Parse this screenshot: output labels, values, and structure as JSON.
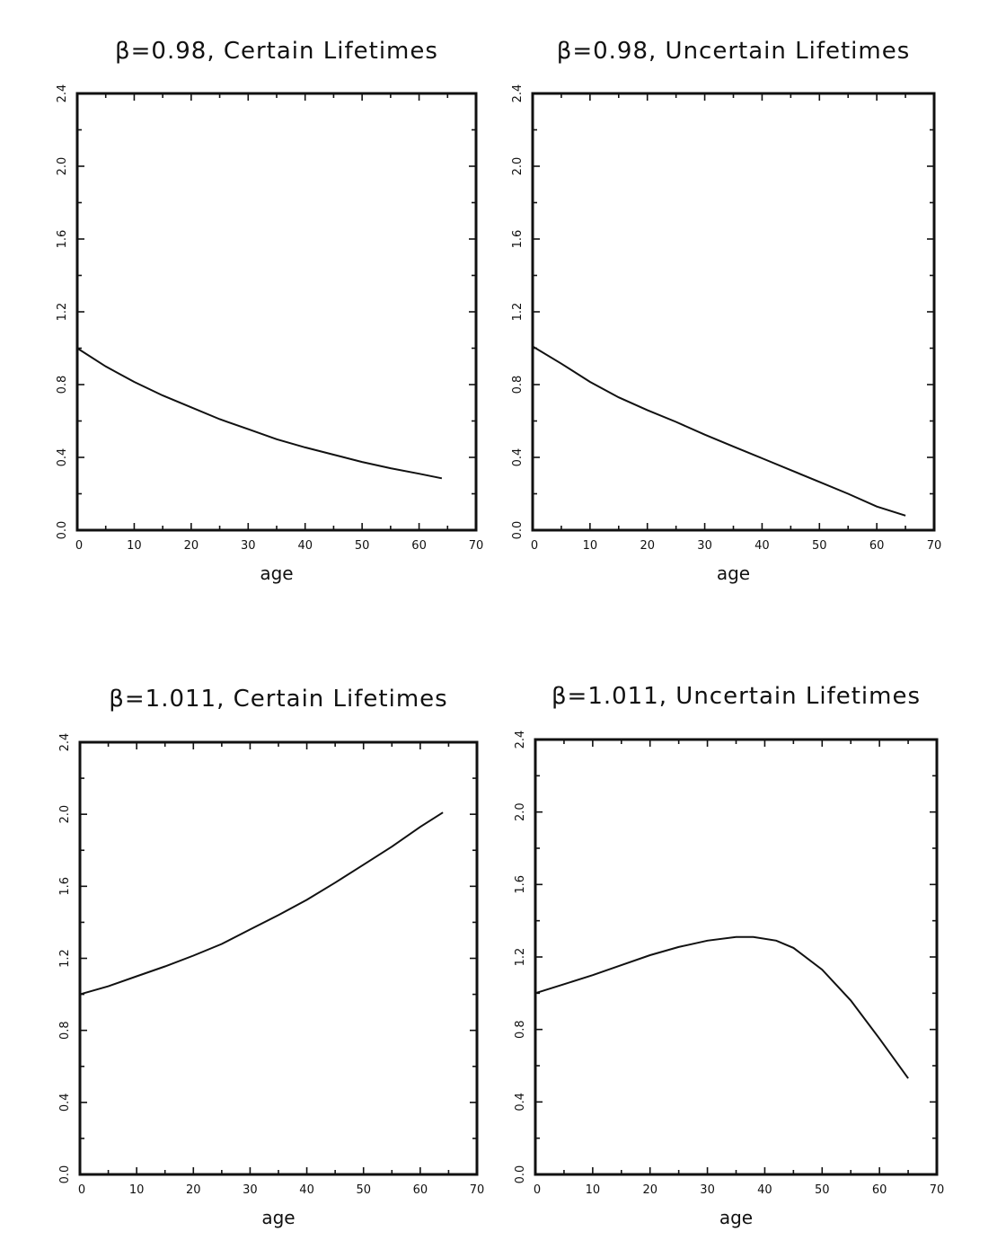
{
  "chart_data": [
    {
      "type": "line",
      "title": "β=0.98, Certain Lifetimes",
      "xlabel": "age",
      "ylabel": "",
      "xlim": [
        0,
        70
      ],
      "ylim": [
        0,
        2.4
      ],
      "x_ticks": [
        "0",
        "10",
        "20",
        "30",
        "40",
        "50",
        "60",
        "70"
      ],
      "y_ticks": [
        "0.0",
        "0.4",
        "0.8",
        "1.2",
        "1.6",
        "2.0",
        "2.4"
      ],
      "series": [
        {
          "x": [
            0,
            5,
            10,
            15,
            20,
            25,
            30,
            35,
            40,
            45,
            50,
            55,
            60,
            64
          ],
          "y": [
            1.0,
            0.9,
            0.815,
            0.74,
            0.675,
            0.61,
            0.555,
            0.5,
            0.455,
            0.415,
            0.375,
            0.34,
            0.31,
            0.285
          ]
        }
      ]
    },
    {
      "type": "line",
      "title": "β=0.98, Uncertain Lifetimes",
      "xlabel": "age",
      "ylabel": "",
      "xlim": [
        0,
        70
      ],
      "ylim": [
        0,
        2.4
      ],
      "x_ticks": [
        "0",
        "10",
        "20",
        "30",
        "40",
        "50",
        "60",
        "70"
      ],
      "y_ticks": [
        "0.0",
        "0.4",
        "0.8",
        "1.2",
        "1.6",
        "2.0",
        "2.4"
      ],
      "series": [
        {
          "x": [
            0,
            5,
            10,
            15,
            20,
            25,
            30,
            35,
            40,
            45,
            50,
            55,
            60,
            65
          ],
          "y": [
            1.01,
            0.915,
            0.815,
            0.73,
            0.66,
            0.595,
            0.525,
            0.46,
            0.395,
            0.33,
            0.265,
            0.2,
            0.13,
            0.08
          ]
        }
      ]
    },
    {
      "type": "line",
      "title": "β=1.011, Certain Lifetimes",
      "xlabel": "age",
      "ylabel": "",
      "xlim": [
        0,
        70
      ],
      "ylim": [
        0,
        2.4
      ],
      "x_ticks": [
        "0",
        "10",
        "20",
        "30",
        "40",
        "50",
        "60",
        "70"
      ],
      "y_ticks": [
        "0.0",
        "0.4",
        "0.8",
        "1.2",
        "1.6",
        "2.0",
        "2.4"
      ],
      "series": [
        {
          "x": [
            0,
            5,
            10,
            15,
            20,
            25,
            30,
            35,
            40,
            45,
            50,
            55,
            60,
            64
          ],
          "y": [
            1.0,
            1.045,
            1.1,
            1.155,
            1.215,
            1.28,
            1.36,
            1.44,
            1.525,
            1.62,
            1.72,
            1.82,
            1.93,
            2.01
          ]
        }
      ]
    },
    {
      "type": "line",
      "title": "β=1.011, Uncertain Lifetimes",
      "xlabel": "age",
      "ylabel": "",
      "xlim": [
        0,
        70
      ],
      "ylim": [
        0,
        2.4
      ],
      "x_ticks": [
        "0",
        "10",
        "20",
        "30",
        "40",
        "50",
        "60",
        "70"
      ],
      "y_ticks": [
        "0.0",
        "0.4",
        "0.8",
        "1.2",
        "1.6",
        "2.0",
        "2.4"
      ],
      "series": [
        {
          "x": [
            0,
            5,
            10,
            15,
            20,
            25,
            30,
            35,
            38,
            42,
            45,
            50,
            55,
            60,
            65
          ],
          "y": [
            1.0,
            1.05,
            1.1,
            1.155,
            1.21,
            1.255,
            1.29,
            1.31,
            1.31,
            1.29,
            1.25,
            1.13,
            0.96,
            0.75,
            0.53
          ]
        }
      ]
    }
  ]
}
